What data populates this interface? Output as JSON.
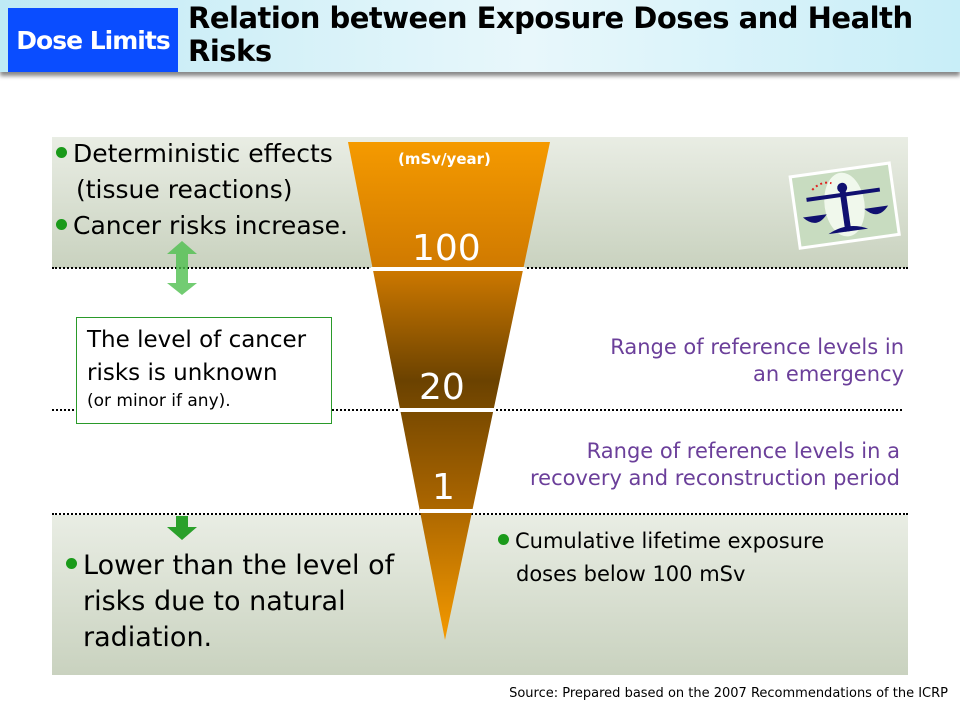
{
  "header": {
    "badge": "Dose Limits",
    "title": "Relation between Exposure Doses and Health Risks"
  },
  "diagram": {
    "unit": "(mSv/year)",
    "levels": [
      "100",
      "20",
      "1"
    ],
    "top_bullets": [
      "Deterministic effects",
      "(tissue reactions)",
      "Cancer risks increase."
    ],
    "middle_box": {
      "line1": "The level of cancer",
      "line2": "risks is unknown",
      "line3": "(or minor if any)."
    },
    "emergency": {
      "line1": "Range of reference levels in",
      "line2": "an emergency"
    },
    "recovery": {
      "line1": "Range of reference levels in a",
      "line2": "recovery and reconstruction period"
    },
    "bottom_left": {
      "line1": "Lower than the level of",
      "line2": "risks due to natural",
      "line3": "radiation."
    },
    "bottom_right": {
      "line1": "Cumulative lifetime exposure",
      "line2": "doses below 100 mSv"
    },
    "colors": {
      "bullet": "#1a9a1a",
      "purple": "#6b3f9a",
      "orange": "#f59a00",
      "brown": "#6b4200",
      "badge": "#0a4dff"
    }
  },
  "source": "Source: Prepared based on the 2007 Recommendations of the ICRP"
}
